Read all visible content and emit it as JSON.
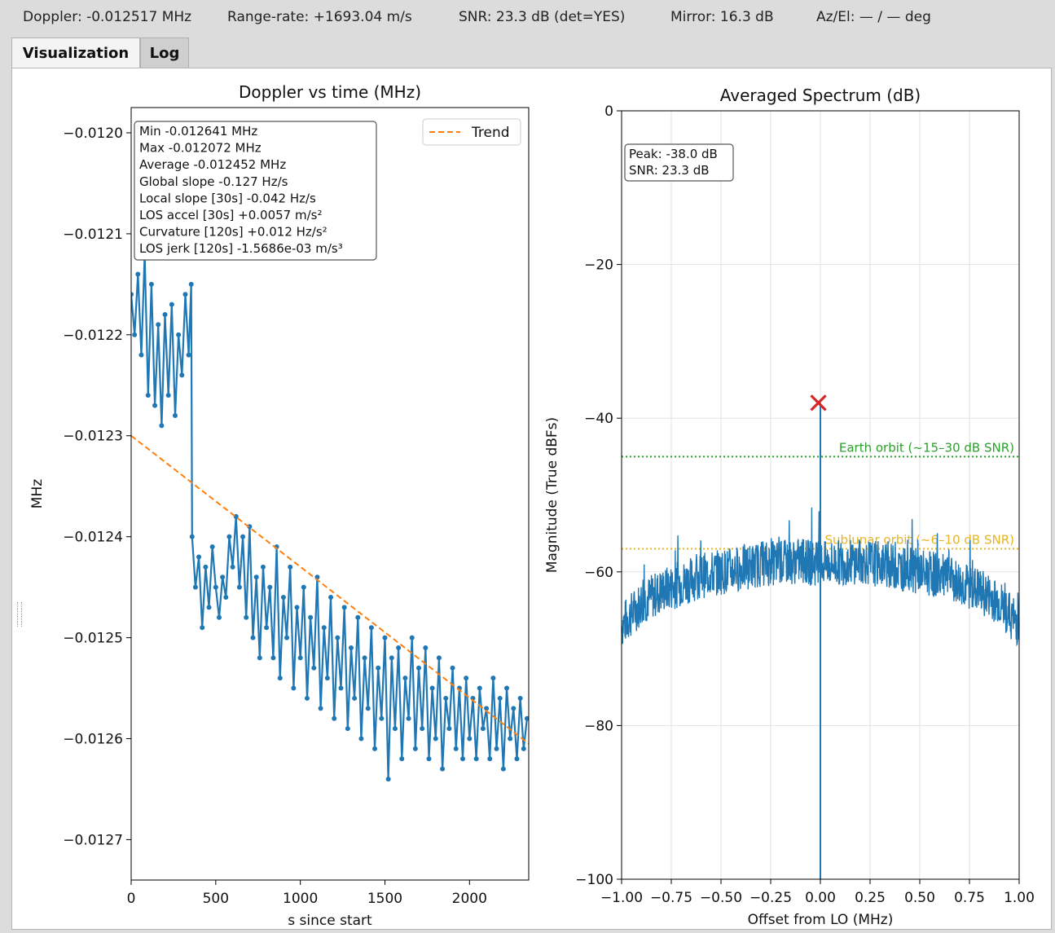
{
  "status": {
    "doppler": "Doppler: -0.012517 MHz",
    "range_rate": "Range-rate: +1693.04 m/s",
    "snr": "SNR: 23.3 dB (det=YES)",
    "mirror": "Mirror: 16.3 dB",
    "azel": "Az/El: — / — deg"
  },
  "tabs": [
    {
      "label": "Visualization",
      "active": true
    },
    {
      "label": "Log",
      "active": false
    }
  ],
  "chart_data": [
    {
      "type": "line",
      "title": "Doppler vs time (MHz)",
      "xlabel": "s since start",
      "ylabel": "MHz",
      "xlim": [
        0,
        2350
      ],
      "ylim": [
        -0.01274,
        -0.011975
      ],
      "xticks": [
        0,
        500,
        1000,
        1500,
        2000
      ],
      "xtick_labels": [
        "0",
        "500",
        "1000",
        "1500",
        "2000"
      ],
      "yticks": [
        -0.012,
        -0.0121,
        -0.0122,
        -0.0123,
        -0.0124,
        -0.0125,
        -0.0126,
        -0.0127
      ],
      "ytick_labels": [
        "−0.0120",
        "−0.0121",
        "−0.0122",
        "−0.0123",
        "−0.0124",
        "−0.0125",
        "−0.0126",
        "−0.0127"
      ],
      "grid": false,
      "legend": {
        "position": "top-right",
        "entries": [
          "Trend"
        ]
      },
      "series": [
        {
          "name": "Trend",
          "style": "dashed",
          "color": "#ff7f0e",
          "x": [
            0,
            2350
          ],
          "y": [
            -0.0123,
            -0.012605
          ]
        },
        {
          "color": "#1f77b4",
          "style": "solid-markers",
          "x": [
            0,
            20,
            40,
            60,
            80,
            100,
            120,
            140,
            160,
            180,
            200,
            220,
            240,
            260,
            280,
            300,
            320,
            340,
            355,
            360,
            380,
            400,
            420,
            440,
            460,
            480,
            500,
            520,
            540,
            560,
            580,
            600,
            620,
            640,
            660,
            680,
            700,
            720,
            740,
            760,
            780,
            800,
            820,
            840,
            860,
            880,
            900,
            920,
            940,
            960,
            980,
            1000,
            1020,
            1040,
            1060,
            1080,
            1100,
            1120,
            1140,
            1160,
            1180,
            1200,
            1220,
            1240,
            1260,
            1280,
            1300,
            1320,
            1340,
            1360,
            1380,
            1400,
            1420,
            1440,
            1460,
            1480,
            1500,
            1520,
            1540,
            1560,
            1580,
            1600,
            1620,
            1640,
            1660,
            1680,
            1700,
            1720,
            1740,
            1760,
            1780,
            1800,
            1820,
            1840,
            1860,
            1880,
            1900,
            1920,
            1940,
            1960,
            1980,
            2000,
            2020,
            2040,
            2060,
            2080,
            2100,
            2120,
            2140,
            2160,
            2180,
            2200,
            2220,
            2240,
            2260,
            2280,
            2300,
            2320,
            2340
          ],
          "y": [
            -0.01216,
            -0.0122,
            -0.01214,
            -0.01222,
            -0.01212,
            -0.01226,
            -0.01215,
            -0.01227,
            -0.01219,
            -0.01229,
            -0.01218,
            -0.01226,
            -0.01217,
            -0.01228,
            -0.0122,
            -0.01224,
            -0.01216,
            -0.01222,
            -0.01215,
            -0.0124,
            -0.01245,
            -0.01242,
            -0.01249,
            -0.01243,
            -0.01247,
            -0.01241,
            -0.01245,
            -0.01248,
            -0.01244,
            -0.01246,
            -0.0124,
            -0.01243,
            -0.01238,
            -0.01245,
            -0.0124,
            -0.01248,
            -0.01239,
            -0.0125,
            -0.01244,
            -0.01252,
            -0.01243,
            -0.01249,
            -0.01245,
            -0.01252,
            -0.01241,
            -0.01254,
            -0.01246,
            -0.0125,
            -0.01243,
            -0.01255,
            -0.01247,
            -0.01252,
            -0.01245,
            -0.01256,
            -0.01248,
            -0.01253,
            -0.01244,
            -0.01257,
            -0.01249,
            -0.01254,
            -0.01246,
            -0.01258,
            -0.0125,
            -0.01255,
            -0.01247,
            -0.01259,
            -0.01251,
            -0.01256,
            -0.01248,
            -0.0126,
            -0.01252,
            -0.01257,
            -0.01249,
            -0.01261,
            -0.01253,
            -0.01258,
            -0.0125,
            -0.01264,
            -0.01252,
            -0.01259,
            -0.01251,
            -0.01262,
            -0.01254,
            -0.01258,
            -0.0125,
            -0.01261,
            -0.01253,
            -0.01259,
            -0.01251,
            -0.01262,
            -0.01255,
            -0.0126,
            -0.01252,
            -0.01263,
            -0.01256,
            -0.01259,
            -0.01253,
            -0.01261,
            -0.01255,
            -0.01262,
            -0.01254,
            -0.0126,
            -0.01256,
            -0.01262,
            -0.01255,
            -0.01259,
            -0.01257,
            -0.01262,
            -0.01254,
            -0.01261,
            -0.01256,
            -0.01263,
            -0.01255,
            -0.0126,
            -0.01257,
            -0.01262,
            -0.01256,
            -0.01261,
            -0.01258
          ]
        }
      ],
      "stats_box": [
        "Min -0.012641 MHz",
        "Max -0.012072 MHz",
        "Average -0.012452 MHz",
        "Global slope -0.127 Hz/s",
        "Local slope [30s] -0.042 Hz/s",
        "LOS accel [30s] +0.0057 m/s²",
        "Curvature [120s] +0.012 Hz/s²",
        "LOS jerk [120s] -1.5686e-03 m/s³"
      ]
    },
    {
      "type": "line",
      "title": "Averaged Spectrum (dB)",
      "xlabel": "Offset from LO (MHz)",
      "ylabel": "Magnitude (True dBFs)",
      "xlim": [
        -1.0,
        1.0
      ],
      "ylim": [
        -100,
        0
      ],
      "xticks": [
        -1.0,
        -0.75,
        -0.5,
        -0.25,
        0.0,
        0.25,
        0.5,
        0.75,
        1.0
      ],
      "xtick_labels": [
        "−1.00",
        "−0.75",
        "−0.50",
        "−0.25",
        "0.00",
        "0.25",
        "0.50",
        "0.75",
        "1.00"
      ],
      "yticks": [
        0,
        -20,
        -40,
        -60,
        -80,
        -100
      ],
      "ytick_labels": [
        "0",
        "−20",
        "−40",
        "−60",
        "−80",
        "−100"
      ],
      "grid": true,
      "series": [
        {
          "color": "#1f77b4",
          "x": [
            -1.0,
            -0.9,
            -0.8,
            -0.7,
            -0.6,
            -0.5,
            -0.4,
            -0.3,
            -0.2,
            -0.1,
            0.0,
            0.1,
            0.2,
            0.3,
            0.4,
            0.5,
            0.6,
            0.7,
            0.8,
            0.9,
            1.0
          ],
          "y": [
            -67,
            -64,
            -62.5,
            -61.5,
            -60.5,
            -60,
            -59.5,
            -59,
            -58.8,
            -58.6,
            -59,
            -58.8,
            -58.6,
            -59,
            -59.5,
            -60,
            -60.5,
            -61.5,
            -62.5,
            -64,
            -67
          ]
        }
      ],
      "spike": {
        "x": 0.0,
        "y_top": -38.0,
        "y_bottom": -100
      },
      "peak_marker": {
        "x": -0.01,
        "y": -38.0,
        "color": "#d62728"
      },
      "reference_lines": [
        {
          "label": "Earth orbit (~15–30 dB SNR)",
          "y": -45,
          "color": "#2ca02c"
        },
        {
          "label": "Sublunar orbit (~6–10 dB SNR)",
          "y": -57,
          "color": "#e6b422"
        }
      ],
      "info_box": [
        "Peak: -38.0 dB",
        "SNR: 23.3 dB"
      ]
    }
  ]
}
